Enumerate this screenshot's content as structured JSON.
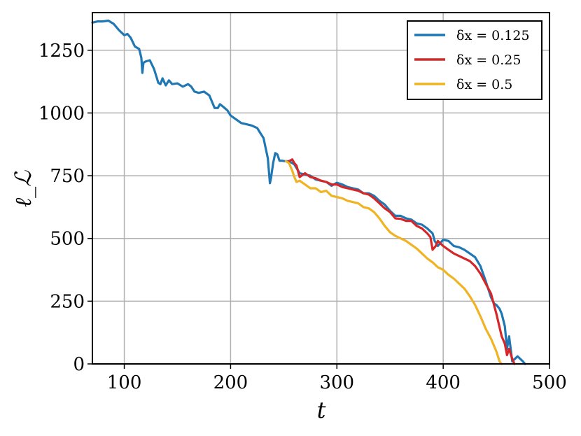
{
  "chart_data": {
    "type": "line",
    "title": "",
    "xlabel": "t",
    "ylabel": "ℓ_ℒ",
    "xlim": [
      70,
      500
    ],
    "ylim": [
      0,
      1400
    ],
    "xticks": [
      100,
      200,
      300,
      400,
      500
    ],
    "yticks": [
      0,
      250,
      500,
      750,
      1000,
      1250
    ],
    "xtick_labels": [
      "100",
      "200",
      "300",
      "400",
      "500"
    ],
    "ytick_labels": [
      "0",
      "250",
      "500",
      "750",
      "1000",
      "1250"
    ],
    "grid": true,
    "legend_position": "top-right",
    "series": [
      {
        "name": "δx = 0.125",
        "color": "#1f77b4",
        "x": [
          70,
          75,
          80,
          85,
          90,
          95,
          100,
          103,
          106,
          110,
          114,
          116,
          117,
          118,
          120,
          124,
          128,
          132,
          134,
          136,
          139,
          142,
          145,
          150,
          155,
          160,
          163,
          166,
          170,
          175,
          180,
          185,
          188,
          190,
          193,
          197,
          200,
          205,
          210,
          215,
          220,
          225,
          228,
          231,
          233,
          235,
          237,
          238,
          240,
          242,
          244,
          246,
          248,
          251,
          255,
          260,
          265,
          270,
          275,
          280,
          285,
          290,
          295,
          300,
          305,
          310,
          315,
          320,
          325,
          330,
          335,
          340,
          345,
          350,
          355,
          360,
          365,
          370,
          375,
          380,
          385,
          390,
          392,
          395,
          400,
          405,
          410,
          415,
          420,
          425,
          430,
          435,
          440,
          445,
          448,
          450,
          453,
          455,
          458,
          460,
          462,
          465,
          470,
          475,
          477
        ],
        "y": [
          1360,
          1365,
          1365,
          1368,
          1355,
          1330,
          1310,
          1315,
          1300,
          1265,
          1255,
          1220,
          1160,
          1200,
          1205,
          1210,
          1175,
          1120,
          1115,
          1138,
          1110,
          1130,
          1115,
          1118,
          1105,
          1115,
          1105,
          1085,
          1080,
          1085,
          1070,
          1020,
          1020,
          1035,
          1025,
          1010,
          990,
          975,
          960,
          955,
          950,
          940,
          920,
          900,
          860,
          820,
          720,
          740,
          800,
          840,
          835,
          810,
          810,
          808,
          808,
          795,
          760,
          755,
          750,
          735,
          730,
          725,
          710,
          722,
          715,
          705,
          700,
          695,
          680,
          680,
          670,
          650,
          635,
          610,
          590,
          590,
          580,
          575,
          560,
          555,
          540,
          520,
          490,
          470,
          495,
          490,
          470,
          465,
          455,
          440,
          425,
          390,
          330,
          265,
          240,
          235,
          220,
          200,
          150,
          60,
          110,
          10,
          30,
          10,
          0
        ]
      },
      {
        "name": "δx = 0.25",
        "color": "#d62728",
        "x": [
          255,
          258,
          260,
          262,
          265,
          270,
          275,
          280,
          285,
          290,
          295,
          300,
          305,
          310,
          315,
          320,
          325,
          330,
          335,
          340,
          345,
          350,
          355,
          360,
          365,
          370,
          375,
          380,
          385,
          388,
          390,
          393,
          395,
          400,
          405,
          410,
          415,
          420,
          425,
          430,
          435,
          440,
          445,
          450,
          455,
          458,
          460,
          462,
          465,
          467
        ],
        "y": [
          808,
          815,
          800,
          790,
          745,
          760,
          745,
          740,
          730,
          725,
          715,
          715,
          705,
          700,
          695,
          690,
          680,
          675,
          660,
          640,
          620,
          605,
          580,
          578,
          570,
          570,
          550,
          540,
          520,
          505,
          455,
          470,
          490,
          470,
          455,
          440,
          430,
          420,
          410,
          390,
          360,
          320,
          280,
          200,
          110,
          80,
          35,
          60,
          20,
          0
        ]
      },
      {
        "name": "δx = 0.5",
        "color": "#f0b323",
        "x": [
          252,
          255,
          258,
          260,
          262,
          265,
          270,
          275,
          280,
          285,
          290,
          295,
          300,
          305,
          310,
          315,
          320,
          325,
          330,
          335,
          340,
          345,
          350,
          355,
          360,
          365,
          370,
          375,
          380,
          385,
          390,
          395,
          400,
          405,
          410,
          415,
          420,
          425,
          430,
          435,
          440,
          445,
          450,
          453,
          455
        ],
        "y": [
          808,
          800,
          770,
          745,
          725,
          730,
          715,
          700,
          700,
          685,
          690,
          670,
          665,
          660,
          650,
          645,
          640,
          625,
          620,
          605,
          580,
          550,
          525,
          510,
          500,
          490,
          475,
          460,
          440,
          420,
          405,
          385,
          375,
          355,
          340,
          320,
          300,
          270,
          235,
          190,
          140,
          100,
          50,
          10,
          0
        ]
      }
    ]
  }
}
